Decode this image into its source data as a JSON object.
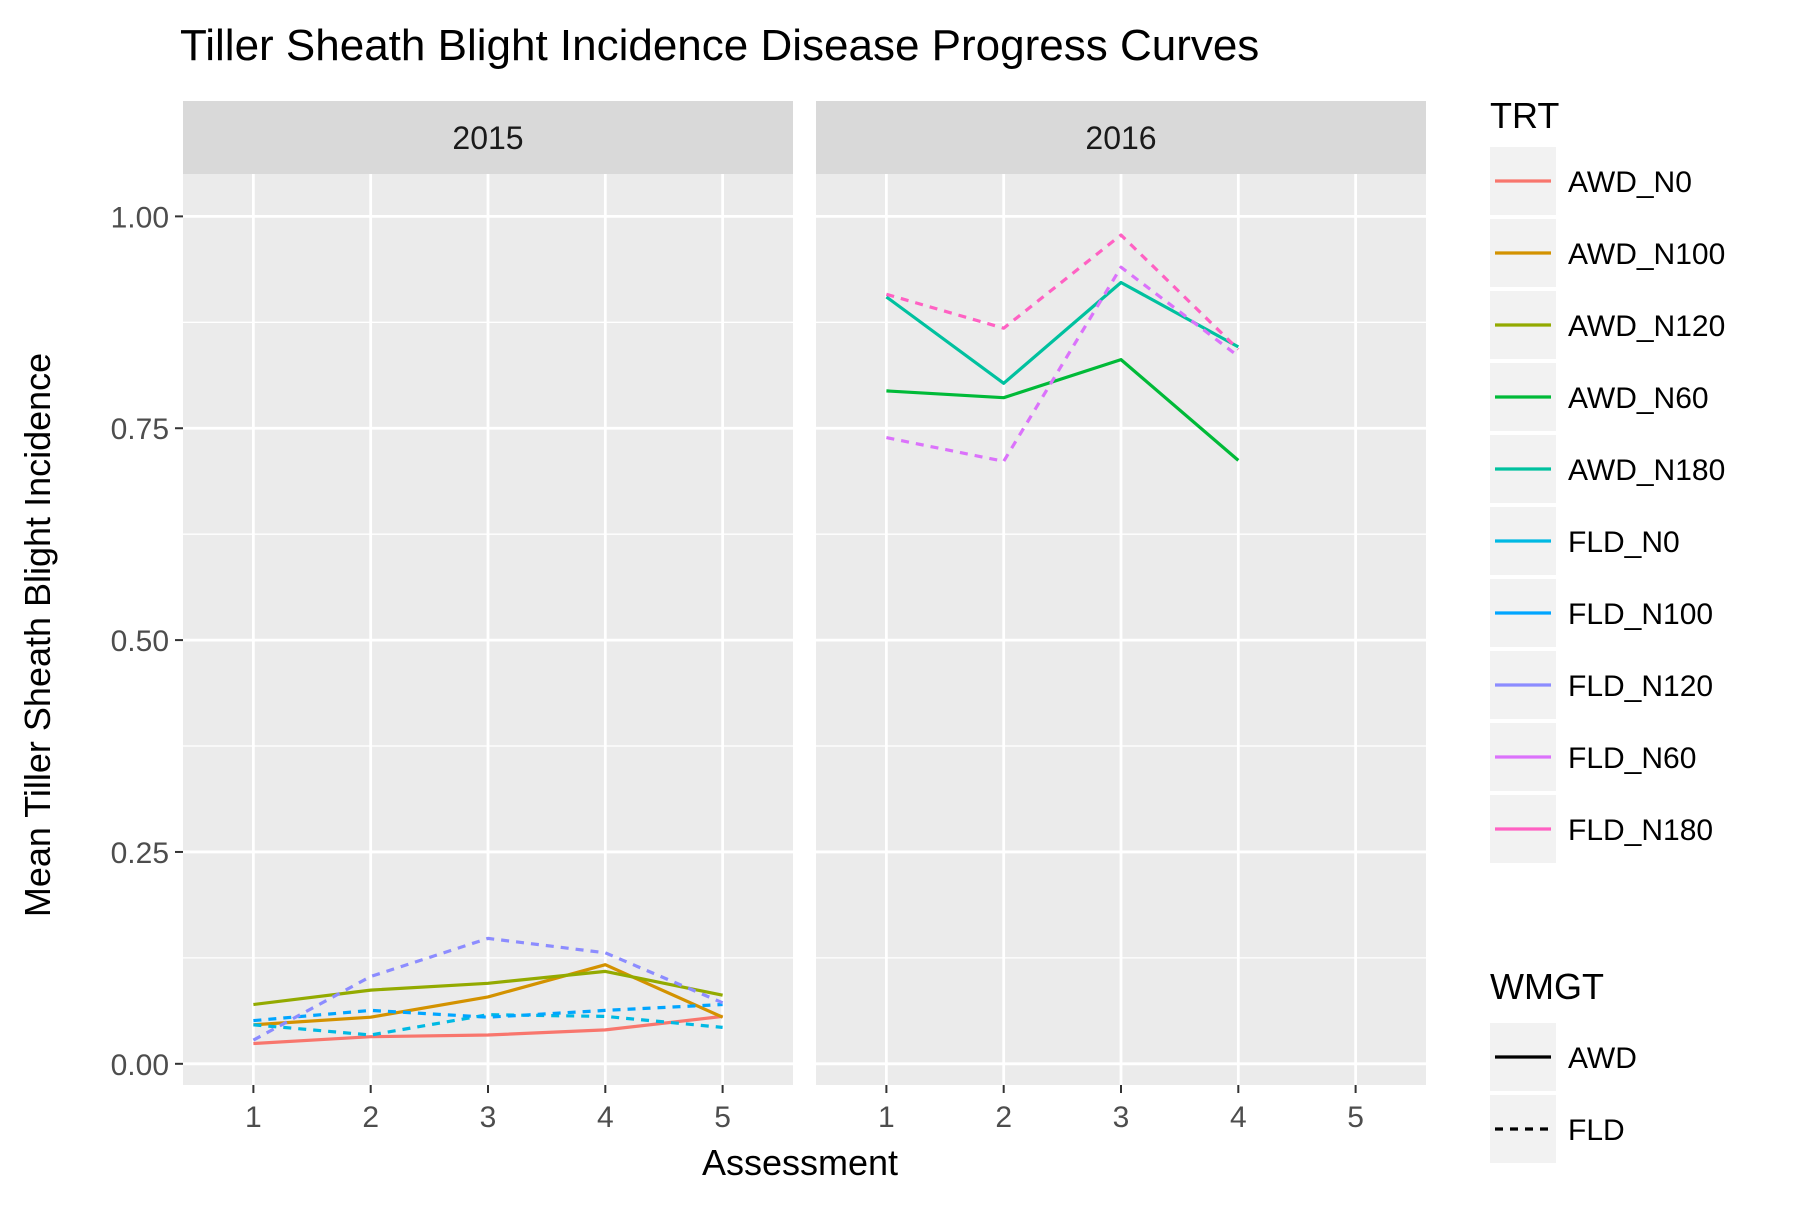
{
  "chart_data": {
    "type": "line",
    "title": "Tiller Sheath Blight Incidence Disease Progress Curves",
    "xlabel": "Assessment",
    "ylabel": "Mean Tiller Sheath Blight Incidence",
    "x_ticks": [
      1,
      2,
      3,
      4,
      5
    ],
    "y_ticks": [
      "0.00",
      "0.25",
      "0.50",
      "0.75",
      "1.00"
    ],
    "xlim": [
      0.4,
      5.6
    ],
    "ylim": [
      -0.025,
      1.05
    ],
    "grid": true,
    "legend_placement": "right",
    "panels": [
      "2015",
      "2016"
    ],
    "legend": {
      "trt_title": "TRT",
      "wmgt_title": "WMGT",
      "wmgt_items": [
        {
          "name": "AWD",
          "dashed": false
        },
        {
          "name": "FLD",
          "dashed": true
        }
      ]
    },
    "series": [
      {
        "name": "AWD_N0",
        "color": "#F8766D",
        "dashed": false,
        "data": {
          "2015": [
            [
              1,
              0.024
            ],
            [
              2,
              0.032
            ],
            [
              3,
              0.034
            ],
            [
              4,
              0.04
            ],
            [
              5,
              0.056
            ]
          ],
          "2016": []
        }
      },
      {
        "name": "AWD_N100",
        "color": "#D39200",
        "dashed": false,
        "data": {
          "2015": [
            [
              1,
              0.046
            ],
            [
              2,
              0.055
            ],
            [
              3,
              0.079
            ],
            [
              4,
              0.117
            ],
            [
              5,
              0.055
            ]
          ],
          "2016": []
        }
      },
      {
        "name": "AWD_N120",
        "color": "#93AA00",
        "dashed": false,
        "data": {
          "2015": [
            [
              1,
              0.07
            ],
            [
              2,
              0.087
            ],
            [
              3,
              0.095
            ],
            [
              4,
              0.109
            ],
            [
              5,
              0.081
            ]
          ],
          "2016": []
        }
      },
      {
        "name": "AWD_N60",
        "color": "#00BA38",
        "dashed": false,
        "data": {
          "2015": [],
          "2016": [
            [
              1,
              0.794
            ],
            [
              2,
              0.786
            ],
            [
              3,
              0.831
            ],
            [
              4,
              0.712
            ]
          ]
        }
      },
      {
        "name": "AWD_N180",
        "color": "#00C19F",
        "dashed": false,
        "data": {
          "2015": [],
          "2016": [
            [
              1,
              0.905
            ],
            [
              2,
              0.803
            ],
            [
              3,
              0.922
            ],
            [
              4,
              0.846
            ]
          ]
        }
      },
      {
        "name": "FLD_N0",
        "color": "#00B9E3",
        "dashed": true,
        "data": {
          "2015": [
            [
              1,
              0.046
            ],
            [
              2,
              0.034
            ],
            [
              3,
              0.058
            ],
            [
              4,
              0.056
            ],
            [
              5,
              0.043
            ]
          ],
          "2016": []
        }
      },
      {
        "name": "FLD_N100",
        "color": "#00A5FF",
        "dashed": true,
        "data": {
          "2015": [
            [
              1,
              0.051
            ],
            [
              2,
              0.063
            ],
            [
              3,
              0.055
            ],
            [
              4,
              0.063
            ],
            [
              5,
              0.07
            ]
          ],
          "2016": []
        }
      },
      {
        "name": "FLD_N120",
        "color": "#8C8CFF",
        "dashed": true,
        "data": {
          "2015": [
            [
              1,
              0.028
            ],
            [
              2,
              0.103
            ],
            [
              3,
              0.148
            ],
            [
              4,
              0.131
            ],
            [
              5,
              0.072
            ]
          ],
          "2016": []
        }
      },
      {
        "name": "FLD_N60",
        "color": "#DB72FB",
        "dashed": true,
        "data": {
          "2015": [],
          "2016": [
            [
              1,
              0.739
            ],
            [
              2,
              0.711
            ],
            [
              3,
              0.94
            ],
            [
              4,
              0.835
            ]
          ]
        }
      },
      {
        "name": "FLD_N180",
        "color": "#FF61C3",
        "dashed": true,
        "data": {
          "2015": [],
          "2016": [
            [
              1,
              0.908
            ],
            [
              2,
              0.868
            ],
            [
              3,
              0.978
            ],
            [
              4,
              0.843
            ]
          ]
        }
      }
    ]
  }
}
